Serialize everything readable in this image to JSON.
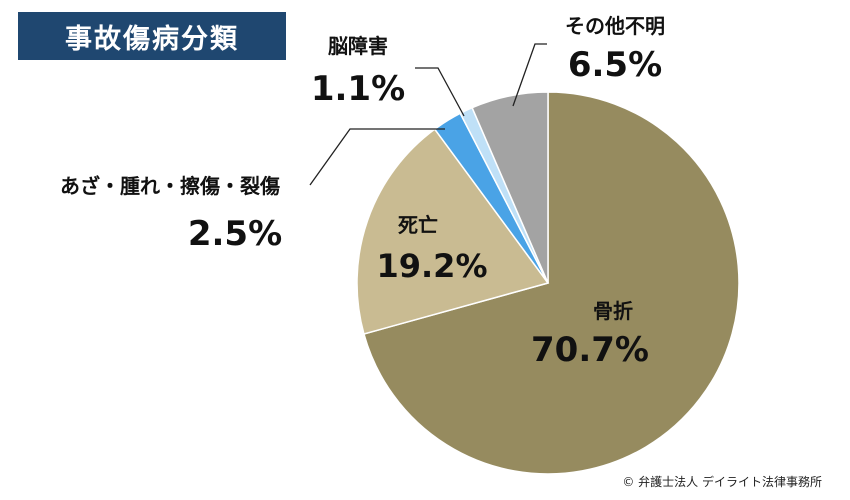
{
  "chart_data": {
    "type": "pie",
    "title": "事故傷病分類",
    "start_angle_deg": 0,
    "direction": "clockwise",
    "slices": [
      {
        "name": "骨折",
        "value": 70.7,
        "label": "70.7%",
        "color": "#968b5f"
      },
      {
        "name": "死亡",
        "value": 19.2,
        "label": "19.2%",
        "color": "#c9bb92"
      },
      {
        "name": "あざ・腫れ・擦傷・裂傷",
        "value": 2.5,
        "label": "2.5%",
        "color": "#4aa3e6"
      },
      {
        "name": "脳障害",
        "value": 1.1,
        "label": "1.1%",
        "color": "#bfe0f7"
      },
      {
        "name": "その他不明",
        "value": 6.5,
        "label": "6.5%",
        "color": "#a3a3a3"
      }
    ]
  },
  "credit": "© 弁護士法人 デイライト法律事務所"
}
